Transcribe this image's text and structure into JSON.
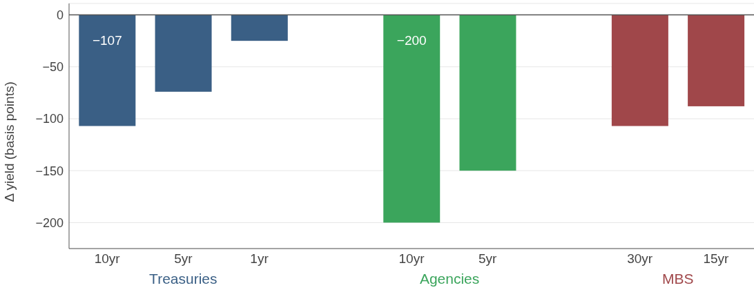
{
  "chart_data": {
    "type": "bar",
    "ylabel": "Δ yield (basis points)",
    "categories": [
      "10yr",
      "5yr",
      "1yr",
      null,
      "10yr",
      "5yr",
      null,
      "30yr",
      "15yr"
    ],
    "series": [
      {
        "name": "Treasuries",
        "color": "#3a5f85",
        "values": [
          -107,
          -74,
          -25,
          null,
          null,
          null,
          null,
          null,
          null
        ],
        "value_labels": [
          "−107",
          null,
          null,
          null,
          null,
          null,
          null,
          null,
          null
        ]
      },
      {
        "name": "Agencies",
        "color": "#3ba55c",
        "values": [
          null,
          null,
          null,
          null,
          -200,
          -150,
          null,
          null,
          null
        ],
        "value_labels": [
          null,
          null,
          null,
          null,
          "−200",
          null,
          null,
          null,
          null
        ]
      },
      {
        "name": "MBS",
        "color": "#a0474a",
        "values": [
          null,
          null,
          null,
          null,
          null,
          null,
          null,
          -107,
          -88
        ],
        "value_labels": [
          null,
          null,
          null,
          null,
          null,
          null,
          null,
          null,
          null
        ]
      }
    ],
    "stacked": true,
    "ylim": [
      -225,
      11
    ],
    "yticks": [
      {
        "value": -200,
        "label": "−200"
      },
      {
        "value": -150,
        "label": "−150"
      },
      {
        "value": -100,
        "label": "−100"
      },
      {
        "value": -50,
        "label": "−50"
      },
      0
    ],
    "grid": "y",
    "ref_lines": [
      {
        "axis": "y",
        "value": 0,
        "color": "#555555"
      }
    ]
  }
}
